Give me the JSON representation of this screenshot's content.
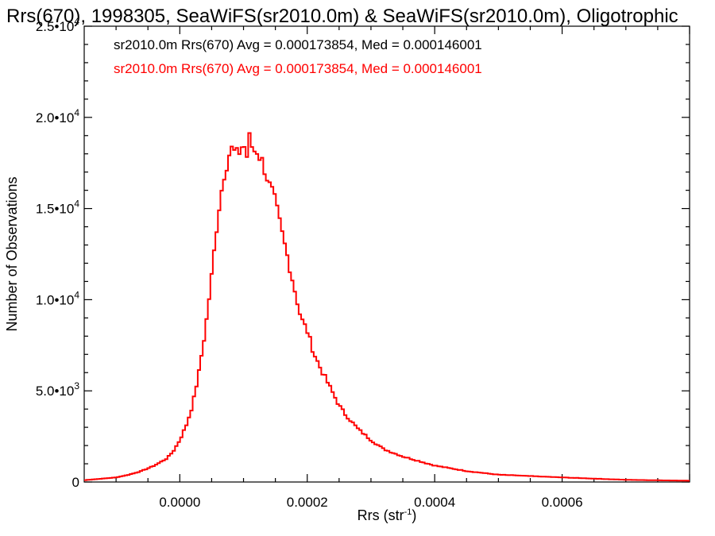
{
  "chart_data": {
    "type": "histogram",
    "title": "Rrs(670), 1998305, SeaWiFS(sr2010.0m) & SeaWiFS(sr2010.0m), Oligotrophic",
    "xlabel": {
      "base": "Rrs (str",
      "sup": "-1",
      "close": ")"
    },
    "ylabel": "Number of Observations",
    "xlim": [
      -0.00015,
      0.0008
    ],
    "ylim": [
      0,
      25000
    ],
    "xticks": [
      {
        "value": 0.0,
        "label": "0.0000"
      },
      {
        "value": 0.0002,
        "label": "0.0002"
      },
      {
        "value": 0.0004,
        "label": "0.0004"
      },
      {
        "value": 0.0006,
        "label": "0.0006"
      }
    ],
    "yticks": [
      {
        "value": 0,
        "mant": "0",
        "exp": ""
      },
      {
        "value": 5000,
        "mant": "5.0•10",
        "exp": "3"
      },
      {
        "value": 10000,
        "mant": "1.0•10",
        "exp": "4"
      },
      {
        "value": 15000,
        "mant": "1.5•10",
        "exp": "4"
      },
      {
        "value": 20000,
        "mant": "2.0•10",
        "exp": "4"
      },
      {
        "value": 25000,
        "mant": "2.5•10",
        "exp": "4"
      }
    ],
    "legend": [
      {
        "text": "sr2010.0m Rrs(670) Avg = 0.000173854, Med = 0.000146001",
        "color": "#000000"
      },
      {
        "text": "sr2010.0m Rrs(670) Avg = 0.000173854, Med = 0.000146001",
        "color": "#ff0000"
      }
    ],
    "legend_position": "top-left",
    "series": [
      {
        "color": "#ff0000",
        "x": [
          -0.00015,
          -0.0001,
          -8e-05,
          -6e-05,
          -4e-05,
          -2e-05,
          -1e-05,
          0.0,
          1e-05,
          2e-05,
          3e-05,
          4e-05,
          5e-05,
          6e-05,
          7e-05,
          8e-05,
          9e-05,
          0.0001,
          0.000105,
          0.00011,
          0.000115,
          0.00012,
          0.000125,
          0.00013,
          0.000135,
          0.00014,
          0.000145,
          0.00015,
          0.00016,
          0.00017,
          0.00018,
          0.00019,
          0.0002,
          0.00021,
          0.00022,
          0.00023,
          0.00024,
          0.00025,
          0.00026,
          0.00028,
          0.0003,
          0.00032,
          0.00035,
          0.0004,
          0.00045,
          0.0005,
          0.0006,
          0.0007,
          0.0008
        ],
        "y": [
          100,
          250,
          400,
          600,
          900,
          1300,
          1700,
          2300,
          3100,
          4200,
          6000,
          8300,
          11300,
          14700,
          17000,
          18300,
          17900,
          18600,
          17800,
          19000,
          18100,
          18300,
          17900,
          17500,
          17000,
          16300,
          15900,
          15300,
          13700,
          12200,
          10600,
          9000,
          8300,
          7100,
          6300,
          5600,
          4900,
          4200,
          3700,
          2900,
          2300,
          1800,
          1400,
          900,
          600,
          400,
          250,
          120,
          70
        ]
      }
    ]
  }
}
